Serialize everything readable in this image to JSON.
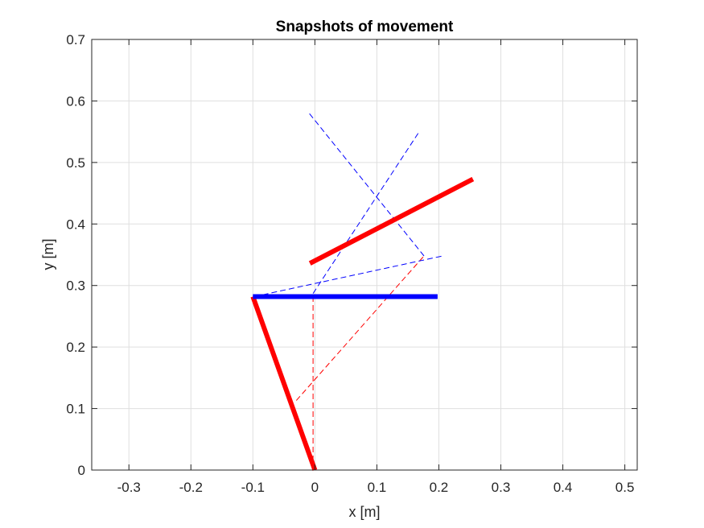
{
  "chart_data": {
    "type": "line",
    "title": "Snapshots of movement",
    "xlabel": "x [m]",
    "ylabel": "y [m]",
    "xlim": [
      -0.36,
      0.52
    ],
    "ylim": [
      0,
      0.7
    ],
    "xticks": [
      -0.3,
      -0.2,
      -0.1,
      0,
      0.1,
      0.2,
      0.3,
      0.4,
      0.5
    ],
    "yticks": [
      0,
      0.1,
      0.2,
      0.3,
      0.4,
      0.5,
      0.6,
      0.7
    ],
    "xtick_labels": [
      "-0.3",
      "-0.2",
      "-0.1",
      "0",
      "0.1",
      "0.2",
      "0.3",
      "0.4",
      "0.5"
    ],
    "ytick_labels": [
      "0",
      "0.1",
      "0.2",
      "0.3",
      "0.4",
      "0.5",
      "0.6",
      "0.7"
    ],
    "grid": true,
    "series": [
      {
        "style": "solid",
        "color": "#ff0000",
        "x": [
          0.0,
          -0.1
        ],
        "y": [
          0.0,
          0.282
        ]
      },
      {
        "style": "solid",
        "color": "#0000ff",
        "x": [
          -0.1,
          0.198
        ],
        "y": [
          0.282,
          0.282
        ]
      },
      {
        "style": "solid",
        "color": "#ff0000",
        "x": [
          -0.008,
          0.255
        ],
        "y": [
          0.336,
          0.473
        ]
      },
      {
        "style": "dashed",
        "color": "#ff0000",
        "x": [
          -0.003,
          -0.098
        ],
        "y": [
          0.0,
          0.282
        ]
      },
      {
        "style": "dashed",
        "color": "#ff0000",
        "x": [
          -0.003,
          -0.003
        ],
        "y": [
          0.0,
          0.287
        ]
      },
      {
        "style": "dashed",
        "color": "#ff0000",
        "x": [
          -0.03,
          0.176
        ],
        "y": [
          0.113,
          0.348
        ]
      },
      {
        "style": "dashed",
        "color": "#0000ff",
        "x": [
          -0.098,
          0.206
        ],
        "y": [
          0.282,
          0.348
        ]
      },
      {
        "style": "dashed",
        "color": "#0000ff",
        "x": [
          -0.003,
          0.167
        ],
        "y": [
          0.287,
          0.548
        ]
      },
      {
        "style": "dashed",
        "color": "#0000ff",
        "x": [
          0.176,
          -0.01
        ],
        "y": [
          0.348,
          0.581
        ]
      }
    ]
  }
}
